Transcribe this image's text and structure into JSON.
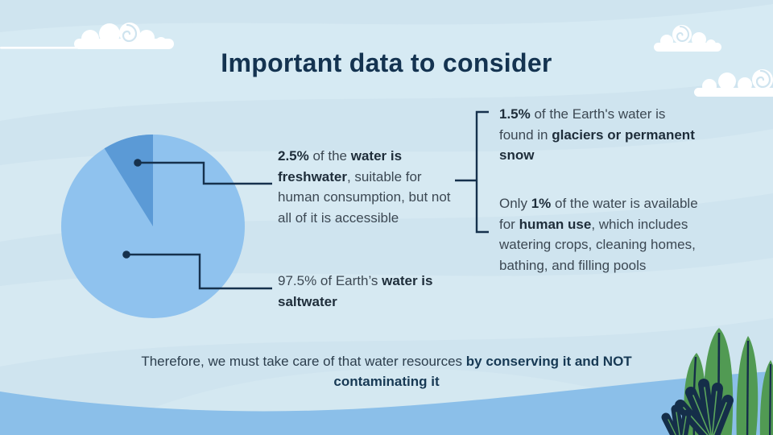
{
  "slide": {
    "title": "Important data to consider",
    "colors": {
      "background": "#cfe4ef",
      "background_band": "#ddeef6",
      "bottom_wave": "#8bbfe9",
      "connector_navy": "#16314d",
      "title_navy": "#143350",
      "body_text": "#3c4853",
      "cloud_white": "#ffffff",
      "leaf_green": "#519a53",
      "leaf_navy": "#152e49"
    }
  },
  "chart_data": {
    "type": "pie",
    "title": "",
    "legend_position": "none",
    "slices": [
      {
        "label": "97.5% of Earth’s water is saltwater",
        "value": 97.5,
        "color": "#8fc2ee"
      },
      {
        "label": "2.5% of the water is freshwater",
        "value": 2.5,
        "color": "#5b9ad6",
        "display_angle_deg": 32
      }
    ]
  },
  "annotations": {
    "freshwater": [
      {
        "text": "2.5%",
        "bold": true
      },
      {
        "text": " of the ",
        "bold": false
      },
      {
        "text": "water is freshwater",
        "bold": true
      },
      {
        "text": ", suitable for human consumption, but not all of it is accessible",
        "bold": false
      }
    ],
    "saltwater": [
      {
        "text": "97.5% of Earth’s ",
        "bold": false
      },
      {
        "text": "water is saltwater",
        "bold": true
      }
    ],
    "glaciers": [
      {
        "text": "1.5%",
        "bold": true
      },
      {
        "text": " of the Earth's water is found in ",
        "bold": false
      },
      {
        "text": "glaciers or permanent snow",
        "bold": true
      }
    ],
    "human_use": [
      {
        "text": "Only ",
        "bold": false
      },
      {
        "text": "1%",
        "bold": true
      },
      {
        "text": " of the water is available for ",
        "bold": false
      },
      {
        "text": "human use",
        "bold": true
      },
      {
        "text": ", which includes watering crops, cleaning homes, bathing, and filling pools",
        "bold": false
      }
    ],
    "conclusion": [
      {
        "text": "Therefore, we must take care of that water resources ",
        "bold": false
      },
      {
        "text": "by conserving it and NOT contaminating it",
        "bold": true
      }
    ]
  }
}
